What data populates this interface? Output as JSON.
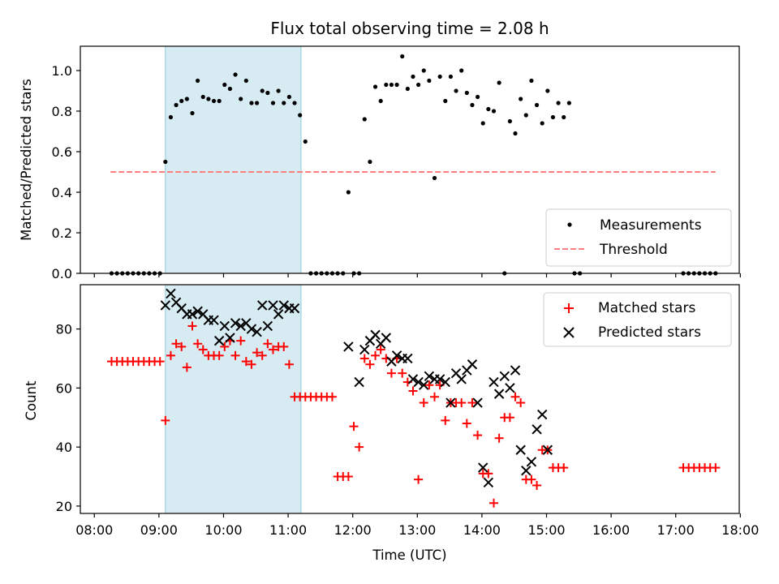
{
  "figure": {
    "title": "Flux total observing time = 2.08 h",
    "xlabel": "Time (UTC)",
    "x_ticks": [
      "08:00",
      "09:00",
      "10:00",
      "11:00",
      "12:00",
      "13:00",
      "14:00",
      "15:00",
      "16:00",
      "17:00",
      "18:00"
    ]
  },
  "chart_data": [
    {
      "type": "scatter",
      "ylabel": "Matched/Predicted stars",
      "xlim": [
        "07:47",
        "17:59"
      ],
      "ylim": [
        0,
        1.12
      ],
      "y_ticks": [
        "0.0",
        "0.2",
        "0.4",
        "0.6",
        "0.8",
        "1.0"
      ],
      "shaded_region": {
        "x": [
          "09:06",
          "11:12"
        ],
        "color": "#add8e6"
      },
      "threshold": {
        "name": "Threshold",
        "y": 0.5,
        "x": [
          "08:15",
          "17:37"
        ],
        "color": "#ff7f7f"
      },
      "legend": {
        "position": "lower right",
        "items": [
          "Measurements",
          "Threshold"
        ]
      },
      "series": [
        {
          "name": "Measurements",
          "marker": "dot",
          "color": "#000000",
          "points": [
            [
              "08:16",
              0.0
            ],
            [
              "08:21",
              0.0
            ],
            [
              "08:26",
              0.0
            ],
            [
              "08:31",
              0.0
            ],
            [
              "08:36",
              0.0
            ],
            [
              "08:41",
              0.0
            ],
            [
              "08:46",
              0.0
            ],
            [
              "08:51",
              0.0
            ],
            [
              "08:56",
              0.0
            ],
            [
              "09:01",
              0.0
            ],
            [
              "09:06",
              0.55
            ],
            [
              "09:11",
              0.77
            ],
            [
              "09:16",
              0.83
            ],
            [
              "09:21",
              0.85
            ],
            [
              "09:26",
              0.86
            ],
            [
              "09:31",
              0.79
            ],
            [
              "09:36",
              0.95
            ],
            [
              "09:41",
              0.87
            ],
            [
              "09:46",
              0.86
            ],
            [
              "09:51",
              0.85
            ],
            [
              "09:56",
              0.85
            ],
            [
              "10:01",
              0.93
            ],
            [
              "10:06",
              0.91
            ],
            [
              "10:11",
              0.98
            ],
            [
              "10:16",
              0.86
            ],
            [
              "10:21",
              0.95
            ],
            [
              "10:26",
              0.84
            ],
            [
              "10:31",
              0.84
            ],
            [
              "10:36",
              0.9
            ],
            [
              "10:41",
              0.89
            ],
            [
              "10:46",
              0.84
            ],
            [
              "10:51",
              0.9
            ],
            [
              "10:56",
              0.84
            ],
            [
              "11:01",
              0.87
            ],
            [
              "11:06",
              0.84
            ],
            [
              "11:11",
              0.78
            ],
            [
              "11:16",
              0.65
            ],
            [
              "11:21",
              0.0
            ],
            [
              "11:26",
              0.0
            ],
            [
              "11:31",
              0.0
            ],
            [
              "11:36",
              0.0
            ],
            [
              "11:41",
              0.0
            ],
            [
              "11:46",
              0.0
            ],
            [
              "11:51",
              0.0
            ],
            [
              "11:56",
              0.4
            ],
            [
              "12:01",
              0.0
            ],
            [
              "12:06",
              0.0
            ],
            [
              "12:11",
              0.76
            ],
            [
              "12:16",
              0.55
            ],
            [
              "12:21",
              0.92
            ],
            [
              "12:26",
              0.85
            ],
            [
              "12:31",
              0.93
            ],
            [
              "12:36",
              0.93
            ],
            [
              "12:41",
              0.93
            ],
            [
              "12:46",
              1.07
            ],
            [
              "12:51",
              0.91
            ],
            [
              "12:56",
              0.97
            ],
            [
              "13:01",
              0.93
            ],
            [
              "13:06",
              1.0
            ],
            [
              "13:11",
              0.95
            ],
            [
              "13:16",
              0.47
            ],
            [
              "13:21",
              0.97
            ],
            [
              "13:26",
              0.85
            ],
            [
              "13:31",
              0.97
            ],
            [
              "13:36",
              0.9
            ],
            [
              "13:41",
              1.0
            ],
            [
              "13:46",
              0.89
            ],
            [
              "13:51",
              0.83
            ],
            [
              "13:56",
              0.87
            ],
            [
              "14:01",
              0.74
            ],
            [
              "14:06",
              0.81
            ],
            [
              "14:11",
              0.8
            ],
            [
              "14:16",
              0.94
            ],
            [
              "14:21",
              0.0
            ],
            [
              "14:26",
              0.75
            ],
            [
              "14:31",
              0.69
            ],
            [
              "14:36",
              0.86
            ],
            [
              "14:41",
              0.78
            ],
            [
              "14:46",
              0.95
            ],
            [
              "14:51",
              0.83
            ],
            [
              "14:56",
              0.74
            ],
            [
              "15:01",
              0.9
            ],
            [
              "15:06",
              0.77
            ],
            [
              "15:11",
              0.84
            ],
            [
              "15:16",
              0.77
            ],
            [
              "15:21",
              0.84
            ],
            [
              "15:26",
              0.0
            ],
            [
              "15:31",
              0.0
            ],
            [
              "17:07",
              0.0
            ],
            [
              "17:12",
              0.0
            ],
            [
              "17:17",
              0.0
            ],
            [
              "17:22",
              0.0
            ],
            [
              "17:27",
              0.0
            ],
            [
              "17:32",
              0.0
            ],
            [
              "17:37",
              0.0
            ]
          ]
        }
      ]
    },
    {
      "type": "scatter",
      "ylabel": "Count",
      "xlabel": "Time (UTC)",
      "xlim": [
        "07:47",
        "17:59"
      ],
      "ylim": [
        17.5,
        95
      ],
      "y_ticks": [
        "20",
        "40",
        "60",
        "80"
      ],
      "shaded_region": {
        "x": [
          "09:06",
          "11:12"
        ],
        "color": "#add8e6"
      },
      "legend": {
        "position": "upper right",
        "items": [
          "Matched stars",
          "Predicted stars"
        ]
      },
      "series": [
        {
          "name": "Matched stars",
          "marker": "plus",
          "color": "#ff0000",
          "points": [
            [
              "08:16",
              69
            ],
            [
              "08:21",
              69
            ],
            [
              "08:26",
              69
            ],
            [
              "08:31",
              69
            ],
            [
              "08:36",
              69
            ],
            [
              "08:41",
              69
            ],
            [
              "08:46",
              69
            ],
            [
              "08:51",
              69
            ],
            [
              "08:56",
              69
            ],
            [
              "09:01",
              69
            ],
            [
              "09:06",
              49
            ],
            [
              "09:11",
              71
            ],
            [
              "09:16",
              75
            ],
            [
              "09:21",
              74
            ],
            [
              "09:26",
              67
            ],
            [
              "09:31",
              81
            ],
            [
              "09:36",
              75
            ],
            [
              "09:41",
              73
            ],
            [
              "09:46",
              71
            ],
            [
              "09:51",
              71
            ],
            [
              "09:56",
              71
            ],
            [
              "10:01",
              74
            ],
            [
              "10:06",
              76
            ],
            [
              "10:11",
              71
            ],
            [
              "10:16",
              76
            ],
            [
              "10:21",
              69
            ],
            [
              "10:26",
              68
            ],
            [
              "10:31",
              72
            ],
            [
              "10:36",
              71
            ],
            [
              "10:41",
              75
            ],
            [
              "10:46",
              73
            ],
            [
              "10:51",
              74
            ],
            [
              "10:56",
              74
            ],
            [
              "11:01",
              68
            ],
            [
              "11:06",
              57
            ],
            [
              "11:11",
              57
            ],
            [
              "11:16",
              57
            ],
            [
              "11:21",
              57
            ],
            [
              "11:26",
              57
            ],
            [
              "11:31",
              57
            ],
            [
              "11:36",
              57
            ],
            [
              "11:41",
              57
            ],
            [
              "11:46",
              30
            ],
            [
              "11:51",
              30
            ],
            [
              "11:56",
              30
            ],
            [
              "12:01",
              47
            ],
            [
              "12:06",
              40
            ],
            [
              "12:11",
              70
            ],
            [
              "12:16",
              68
            ],
            [
              "12:21",
              71
            ],
            [
              "12:26",
              73
            ],
            [
              "12:31",
              70
            ],
            [
              "12:36",
              65
            ],
            [
              "12:41",
              70
            ],
            [
              "12:46",
              65
            ],
            [
              "12:51",
              62
            ],
            [
              "12:56",
              59
            ],
            [
              "13:01",
              29
            ],
            [
              "13:06",
              55
            ],
            [
              "13:11",
              61
            ],
            [
              "13:16",
              57
            ],
            [
              "13:21",
              61
            ],
            [
              "13:26",
              49
            ],
            [
              "13:31",
              55
            ],
            [
              "13:36",
              55
            ],
            [
              "13:41",
              55
            ],
            [
              "13:46",
              48
            ],
            [
              "13:51",
              55
            ],
            [
              "13:56",
              44
            ],
            [
              "14:01",
              31
            ],
            [
              "14:06",
              31
            ],
            [
              "14:11",
              21
            ],
            [
              "14:16",
              43
            ],
            [
              "14:21",
              50
            ],
            [
              "14:26",
              50
            ],
            [
              "14:31",
              57
            ],
            [
              "14:36",
              55
            ],
            [
              "14:41",
              29
            ],
            [
              "14:46",
              29
            ],
            [
              "14:51",
              27
            ],
            [
              "14:56",
              39
            ],
            [
              "15:01",
              39
            ],
            [
              "15:06",
              33
            ],
            [
              "15:11",
              33
            ],
            [
              "15:16",
              33
            ],
            [
              "17:07",
              33
            ],
            [
              "17:12",
              33
            ],
            [
              "17:17",
              33
            ],
            [
              "17:22",
              33
            ],
            [
              "17:27",
              33
            ],
            [
              "17:32",
              33
            ],
            [
              "17:37",
              33
            ]
          ]
        },
        {
          "name": "Predicted stars",
          "marker": "x",
          "color": "#000000",
          "points": [
            [
              "09:06",
              88
            ],
            [
              "09:11",
              92
            ],
            [
              "09:16",
              89
            ],
            [
              "09:21",
              87
            ],
            [
              "09:26",
              85
            ],
            [
              "09:31",
              85
            ],
            [
              "09:36",
              86
            ],
            [
              "09:41",
              85
            ],
            [
              "09:46",
              83
            ],
            [
              "09:51",
              83
            ],
            [
              "09:56",
              76
            ],
            [
              "10:01",
              81
            ],
            [
              "10:06",
              77
            ],
            [
              "10:11",
              82
            ],
            [
              "10:16",
              81
            ],
            [
              "10:21",
              82
            ],
            [
              "10:26",
              80
            ],
            [
              "10:31",
              79
            ],
            [
              "10:36",
              88
            ],
            [
              "10:41",
              81
            ],
            [
              "10:46",
              88
            ],
            [
              "10:51",
              85
            ],
            [
              "10:56",
              88
            ],
            [
              "11:01",
              87
            ],
            [
              "11:06",
              87
            ],
            [
              "11:56",
              74
            ],
            [
              "12:06",
              62
            ],
            [
              "12:11",
              73
            ],
            [
              "12:16",
              76
            ],
            [
              "12:21",
              78
            ],
            [
              "12:26",
              75
            ],
            [
              "12:31",
              77
            ],
            [
              "12:36",
              69
            ],
            [
              "12:41",
              71
            ],
            [
              "12:46",
              70
            ],
            [
              "12:51",
              70
            ],
            [
              "12:56",
              63
            ],
            [
              "13:01",
              62
            ],
            [
              "13:06",
              61
            ],
            [
              "13:11",
              64
            ],
            [
              "13:16",
              63
            ],
            [
              "13:21",
              63
            ],
            [
              "13:26",
              62
            ],
            [
              "13:31",
              55
            ],
            [
              "13:36",
              65
            ],
            [
              "13:41",
              63
            ],
            [
              "13:46",
              66
            ],
            [
              "13:51",
              68
            ],
            [
              "13:56",
              55
            ],
            [
              "14:01",
              33
            ],
            [
              "14:06",
              28
            ],
            [
              "14:11",
              62
            ],
            [
              "14:16",
              58
            ],
            [
              "14:21",
              64
            ],
            [
              "14:26",
              60
            ],
            [
              "14:31",
              66
            ],
            [
              "14:36",
              39
            ],
            [
              "14:41",
              32
            ],
            [
              "14:46",
              35
            ],
            [
              "14:51",
              46
            ],
            [
              "14:56",
              51
            ],
            [
              "15:01",
              39
            ]
          ]
        }
      ]
    }
  ]
}
